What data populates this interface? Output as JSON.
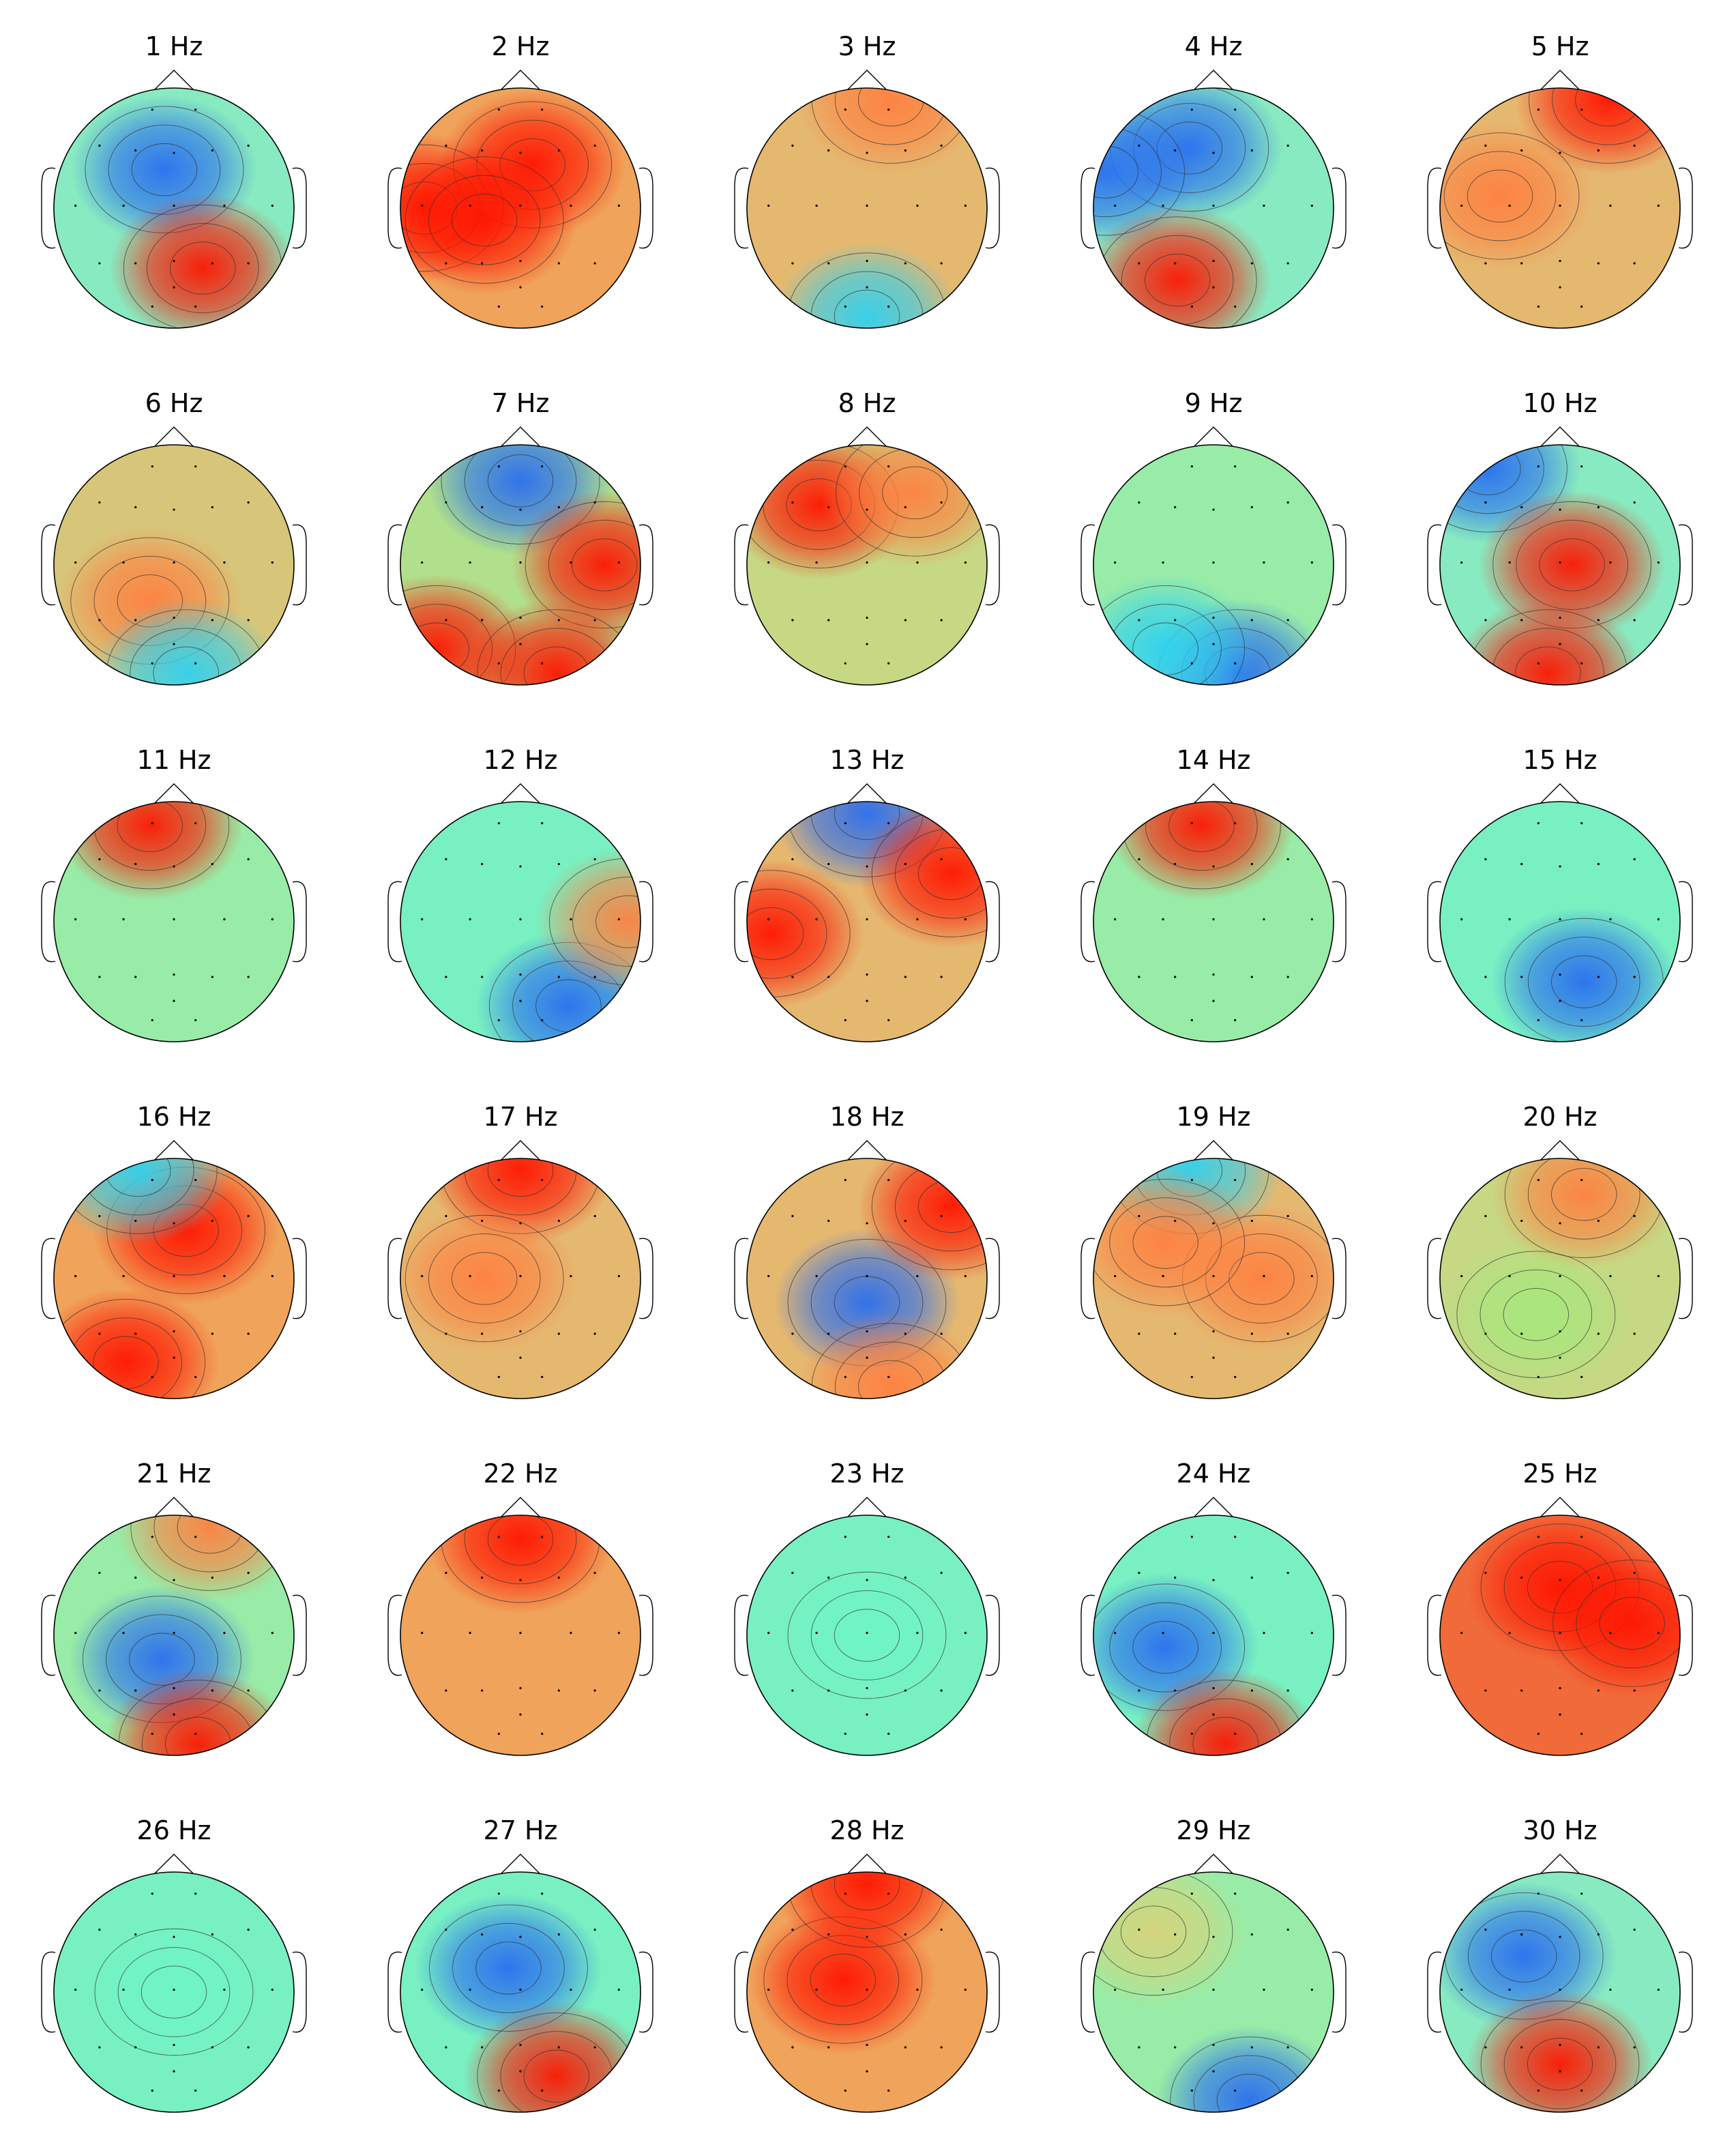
{
  "chart_data": [
    {
      "type": "heatmap",
      "title": "1 Hz",
      "blobs": [
        [
          "blue",
          0.46,
          0.34
        ],
        [
          "red",
          0.62,
          0.75
        ]
      ],
      "background": "cyan-green"
    },
    {
      "type": "heatmap",
      "title": "2 Hz",
      "blobs": [
        [
          "red",
          0.55,
          0.32
        ],
        [
          "red",
          0.1,
          0.5
        ],
        [
          "red",
          0.35,
          0.55
        ]
      ],
      "background": "orange"
    },
    {
      "type": "heatmap",
      "title": "3 Hz",
      "blobs": [
        [
          "cyan",
          0.5,
          0.95
        ],
        [
          "orange",
          0.6,
          0.05
        ]
      ],
      "background": "orange-yellow"
    },
    {
      "type": "heatmap",
      "title": "4 Hz",
      "blobs": [
        [
          "blue",
          0.4,
          0.25
        ],
        [
          "blue",
          0.05,
          0.35
        ],
        [
          "red",
          0.35,
          0.8
        ]
      ],
      "background": "cyan-green"
    },
    {
      "type": "heatmap",
      "title": "5 Hz",
      "blobs": [
        [
          "red",
          0.7,
          0.05
        ],
        [
          "orange",
          0.25,
          0.45
        ]
      ],
      "background": "orange-yellow"
    },
    {
      "type": "heatmap",
      "title": "6 Hz",
      "blobs": [
        [
          "orange",
          0.4,
          0.65
        ],
        [
          "cyan",
          0.55,
          0.95
        ]
      ],
      "background": "yellow-orange"
    },
    {
      "type": "heatmap",
      "title": "7 Hz",
      "blobs": [
        [
          "blue",
          0.5,
          0.15
        ],
        [
          "red",
          0.85,
          0.5
        ],
        [
          "red",
          0.15,
          0.85
        ],
        [
          "red",
          0.65,
          0.95
        ]
      ],
      "background": "green-yellow"
    },
    {
      "type": "heatmap",
      "title": "8 Hz",
      "blobs": [
        [
          "red",
          0.3,
          0.25
        ],
        [
          "orange",
          0.7,
          0.2
        ]
      ],
      "background": "yellow-green"
    },
    {
      "type": "heatmap",
      "title": "9 Hz",
      "blobs": [
        [
          "blue",
          0.6,
          0.95
        ],
        [
          "cyan",
          0.3,
          0.85
        ]
      ],
      "background": "light-green"
    },
    {
      "type": "heatmap",
      "title": "10 Hz",
      "blobs": [
        [
          "blue",
          0.2,
          0.1
        ],
        [
          "red",
          0.55,
          0.5
        ],
        [
          "red",
          0.45,
          0.95
        ]
      ],
      "background": "cyan-green"
    },
    {
      "type": "heatmap",
      "title": "11 Hz",
      "blobs": [
        [
          "red",
          0.4,
          0.1
        ]
      ],
      "background": "light-green"
    },
    {
      "type": "heatmap",
      "title": "12 Hz",
      "blobs": [
        [
          "blue",
          0.7,
          0.85
        ],
        [
          "orange",
          0.95,
          0.5
        ]
      ],
      "background": "aqua-green"
    },
    {
      "type": "heatmap",
      "title": "13 Hz",
      "blobs": [
        [
          "blue",
          0.5,
          0.05
        ],
        [
          "red",
          0.1,
          0.55
        ],
        [
          "red",
          0.85,
          0.3
        ]
      ],
      "background": "orange-yellow"
    },
    {
      "type": "heatmap",
      "title": "14 Hz",
      "blobs": [
        [
          "red",
          0.45,
          0.1
        ]
      ],
      "background": "light-green"
    },
    {
      "type": "heatmap",
      "title": "15 Hz",
      "blobs": [
        [
          "blue",
          0.6,
          0.75
        ]
      ],
      "background": "aqua-green"
    },
    {
      "type": "heatmap",
      "title": "16 Hz",
      "blobs": [
        [
          "red",
          0.55,
          0.3
        ],
        [
          "red",
          0.3,
          0.85
        ],
        [
          "cyan",
          0.35,
          0.05
        ]
      ],
      "background": "orange"
    },
    {
      "type": "heatmap",
      "title": "17 Hz",
      "blobs": [
        [
          "red",
          0.5,
          0.05
        ],
        [
          "orange",
          0.35,
          0.5
        ]
      ],
      "background": "orange-yellow"
    },
    {
      "type": "heatmap",
      "title": "18 Hz",
      "blobs": [
        [
          "blue",
          0.5,
          0.6
        ],
        [
          "red",
          0.85,
          0.2
        ],
        [
          "orange",
          0.6,
          0.95
        ]
      ],
      "background": "orange-yellow"
    },
    {
      "type": "heatmap",
      "title": "19 Hz",
      "blobs": [
        [
          "cyan",
          0.4,
          0.05
        ],
        [
          "orange",
          0.7,
          0.5
        ],
        [
          "orange",
          0.3,
          0.35
        ]
      ],
      "background": "orange-yellow"
    },
    {
      "type": "heatmap",
      "title": "20 Hz",
      "blobs": [
        [
          "green",
          0.4,
          0.65
        ],
        [
          "orange",
          0.6,
          0.15
        ]
      ],
      "background": "yellow-green"
    },
    {
      "type": "heatmap",
      "title": "21 Hz",
      "blobs": [
        [
          "blue",
          0.45,
          0.6
        ],
        [
          "red",
          0.6,
          0.95
        ],
        [
          "orange",
          0.65,
          0.05
        ]
      ],
      "background": "light-green"
    },
    {
      "type": "heatmap",
      "title": "22 Hz",
      "blobs": [
        [
          "red",
          0.5,
          0.1
        ]
      ],
      "background": "orange"
    },
    {
      "type": "heatmap",
      "title": "23 Hz",
      "blobs": [
        [
          "aqua",
          0.5,
          0.5
        ]
      ],
      "background": "aqua-green"
    },
    {
      "type": "heatmap",
      "title": "24 Hz",
      "blobs": [
        [
          "blue",
          0.3,
          0.55
        ],
        [
          "red",
          0.55,
          0.95
        ]
      ],
      "background": "aqua-green"
    },
    {
      "type": "heatmap",
      "title": "25 Hz",
      "blobs": [
        [
          "red",
          0.5,
          0.3
        ],
        [
          "red",
          0.8,
          0.45
        ]
      ],
      "background": "red-orange"
    },
    {
      "type": "heatmap",
      "title": "26 Hz",
      "blobs": [
        [
          "aqua",
          0.5,
          0.5
        ]
      ],
      "background": "aqua-green"
    },
    {
      "type": "heatmap",
      "title": "27 Hz",
      "blobs": [
        [
          "blue",
          0.45,
          0.4
        ],
        [
          "red",
          0.65,
          0.85
        ]
      ],
      "background": "aqua-green"
    },
    {
      "type": "heatmap",
      "title": "28 Hz",
      "blobs": [
        [
          "red",
          0.4,
          0.45
        ],
        [
          "red",
          0.5,
          0.05
        ]
      ],
      "background": "orange"
    },
    {
      "type": "heatmap",
      "title": "29 Hz",
      "blobs": [
        [
          "blue",
          0.65,
          0.95
        ],
        [
          "yellow",
          0.25,
          0.25
        ]
      ],
      "background": "light-green"
    },
    {
      "type": "heatmap",
      "title": "30 Hz",
      "blobs": [
        [
          "blue",
          0.35,
          0.35
        ],
        [
          "red",
          0.5,
          0.8
        ]
      ],
      "background": "cyan-green"
    }
  ],
  "colors": {
    "red": "#ff1500",
    "orange": "#ff8040",
    "yellow": "#d8d37a",
    "green": "#a5e87c",
    "aqua": "#6ef5c4",
    "cyan": "#2fd1f0",
    "blue": "#2a6ef0",
    "outline": "#000000",
    "contour": "#333333"
  },
  "backgrounds": {
    "cyan-green": "#88eac0",
    "orange": "#f0a35a",
    "orange-yellow": "#e5b870",
    "yellow-orange": "#d7c67a",
    "green-yellow": "#b0e08c",
    "yellow-green": "#c6d884",
    "light-green": "#98eca7",
    "aqua-green": "#78f0c2",
    "red-orange": "#f06a3a"
  }
}
